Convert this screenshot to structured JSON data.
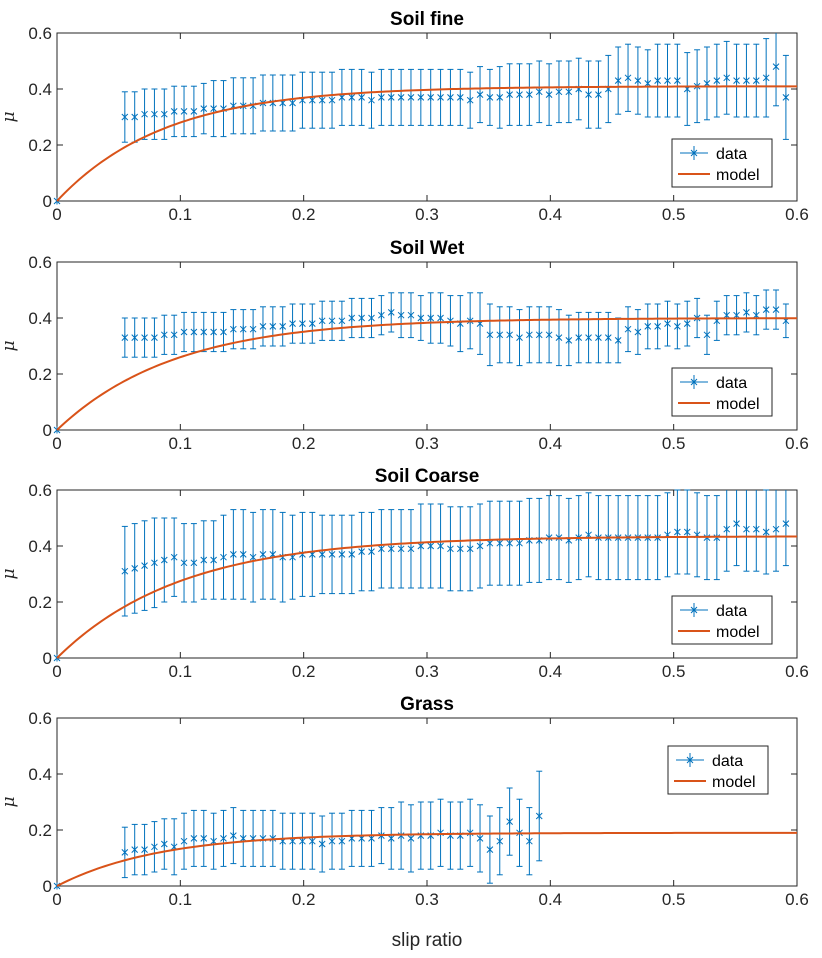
{
  "chart_data": [
    {
      "type": "errorbar+line",
      "title": "Soil fine",
      "xlabel": "",
      "ylabel": "μ",
      "xlim": [
        0,
        0.6
      ],
      "ylim": [
        0,
        0.6
      ],
      "xticks": [
        0,
        0.1,
        0.2,
        0.3,
        0.4,
        0.5,
        0.6
      ],
      "yticks": [
        0,
        0.2,
        0.4,
        0.6
      ],
      "legend": {
        "position": "bottom-right",
        "entries": [
          "data",
          "model"
        ]
      },
      "colors": {
        "data": "#0072BD",
        "model": "#D95319"
      },
      "model": {
        "mu_max": 0.41,
        "k": 11.5
      },
      "series": {
        "data": {
          "x": [
            0,
            0.055,
            0.063,
            0.071,
            0.079,
            0.087,
            0.095,
            0.103,
            0.111,
            0.119,
            0.127,
            0.135,
            0.143,
            0.151,
            0.159,
            0.167,
            0.175,
            0.183,
            0.191,
            0.199,
            0.207,
            0.215,
            0.223,
            0.231,
            0.239,
            0.247,
            0.255,
            0.263,
            0.271,
            0.279,
            0.287,
            0.295,
            0.303,
            0.311,
            0.319,
            0.327,
            0.335,
            0.343,
            0.351,
            0.359,
            0.367,
            0.375,
            0.383,
            0.391,
            0.399,
            0.407,
            0.415,
            0.423,
            0.431,
            0.439,
            0.447,
            0.455,
            0.463,
            0.471,
            0.479,
            0.487,
            0.495,
            0.503,
            0.511,
            0.519,
            0.527,
            0.535,
            0.543,
            0.551,
            0.559,
            0.567,
            0.575,
            0.583,
            0.591
          ],
          "y": [
            0,
            0.3,
            0.3,
            0.31,
            0.31,
            0.31,
            0.32,
            0.32,
            0.32,
            0.33,
            0.33,
            0.33,
            0.34,
            0.34,
            0.34,
            0.35,
            0.35,
            0.35,
            0.35,
            0.36,
            0.36,
            0.36,
            0.36,
            0.37,
            0.37,
            0.37,
            0.36,
            0.37,
            0.37,
            0.37,
            0.37,
            0.37,
            0.37,
            0.37,
            0.37,
            0.37,
            0.36,
            0.38,
            0.37,
            0.37,
            0.38,
            0.38,
            0.38,
            0.39,
            0.38,
            0.39,
            0.39,
            0.4,
            0.38,
            0.38,
            0.4,
            0.43,
            0.44,
            0.43,
            0.42,
            0.43,
            0.43,
            0.43,
            0.4,
            0.41,
            0.42,
            0.43,
            0.44,
            0.43,
            0.43,
            0.43,
            0.44,
            0.48,
            0.37
          ],
          "err": [
            0,
            0.09,
            0.09,
            0.09,
            0.09,
            0.09,
            0.09,
            0.09,
            0.09,
            0.09,
            0.1,
            0.1,
            0.1,
            0.1,
            0.1,
            0.1,
            0.1,
            0.1,
            0.1,
            0.1,
            0.1,
            0.1,
            0.1,
            0.1,
            0.1,
            0.1,
            0.1,
            0.1,
            0.1,
            0.1,
            0.1,
            0.1,
            0.1,
            0.1,
            0.1,
            0.1,
            0.1,
            0.1,
            0.1,
            0.11,
            0.11,
            0.11,
            0.11,
            0.11,
            0.11,
            0.11,
            0.11,
            0.11,
            0.12,
            0.12,
            0.12,
            0.12,
            0.12,
            0.12,
            0.12,
            0.13,
            0.13,
            0.13,
            0.13,
            0.13,
            0.13,
            0.13,
            0.13,
            0.13,
            0.13,
            0.13,
            0.14,
            0.14,
            0.15
          ]
        }
      }
    },
    {
      "type": "errorbar+line",
      "title": "Soil Wet",
      "xlabel": "",
      "ylabel": "μ",
      "xlim": [
        0,
        0.6
      ],
      "ylim": [
        0,
        0.6
      ],
      "xticks": [
        0,
        0.1,
        0.2,
        0.3,
        0.4,
        0.5,
        0.6
      ],
      "yticks": [
        0,
        0.2,
        0.4,
        0.6
      ],
      "legend": {
        "position": "bottom-right",
        "entries": [
          "data",
          "model"
        ]
      },
      "colors": {
        "data": "#0072BD",
        "model": "#D95319"
      },
      "model": {
        "mu_max": 0.4,
        "k": 10.5
      },
      "series": {
        "data": {
          "x": [
            0,
            0.055,
            0.063,
            0.071,
            0.079,
            0.087,
            0.095,
            0.103,
            0.111,
            0.119,
            0.127,
            0.135,
            0.143,
            0.151,
            0.159,
            0.167,
            0.175,
            0.183,
            0.191,
            0.199,
            0.207,
            0.215,
            0.223,
            0.231,
            0.239,
            0.247,
            0.255,
            0.263,
            0.271,
            0.279,
            0.287,
            0.295,
            0.303,
            0.311,
            0.319,
            0.327,
            0.335,
            0.343,
            0.351,
            0.359,
            0.367,
            0.375,
            0.383,
            0.391,
            0.399,
            0.407,
            0.415,
            0.423,
            0.431,
            0.439,
            0.447,
            0.455,
            0.463,
            0.471,
            0.479,
            0.487,
            0.495,
            0.503,
            0.511,
            0.519,
            0.527,
            0.535,
            0.543,
            0.551,
            0.559,
            0.567,
            0.575,
            0.583,
            0.591
          ],
          "y": [
            0,
            0.33,
            0.33,
            0.33,
            0.33,
            0.34,
            0.34,
            0.35,
            0.35,
            0.35,
            0.35,
            0.35,
            0.36,
            0.36,
            0.36,
            0.37,
            0.37,
            0.37,
            0.38,
            0.38,
            0.38,
            0.39,
            0.39,
            0.39,
            0.4,
            0.4,
            0.4,
            0.41,
            0.42,
            0.41,
            0.41,
            0.4,
            0.4,
            0.4,
            0.39,
            0.38,
            0.39,
            0.38,
            0.34,
            0.34,
            0.34,
            0.33,
            0.34,
            0.34,
            0.34,
            0.33,
            0.32,
            0.33,
            0.33,
            0.33,
            0.33,
            0.32,
            0.36,
            0.35,
            0.37,
            0.37,
            0.38,
            0.37,
            0.38,
            0.4,
            0.34,
            0.39,
            0.41,
            0.41,
            0.42,
            0.41,
            0.43,
            0.43,
            0.39
          ],
          "err": [
            0,
            0.07,
            0.07,
            0.07,
            0.07,
            0.07,
            0.07,
            0.07,
            0.07,
            0.07,
            0.07,
            0.07,
            0.07,
            0.07,
            0.07,
            0.07,
            0.07,
            0.07,
            0.07,
            0.07,
            0.07,
            0.07,
            0.07,
            0.07,
            0.07,
            0.07,
            0.07,
            0.07,
            0.07,
            0.08,
            0.08,
            0.08,
            0.09,
            0.09,
            0.09,
            0.1,
            0.1,
            0.11,
            0.11,
            0.1,
            0.1,
            0.1,
            0.1,
            0.1,
            0.1,
            0.1,
            0.09,
            0.09,
            0.09,
            0.09,
            0.09,
            0.08,
            0.08,
            0.08,
            0.08,
            0.08,
            0.08,
            0.08,
            0.08,
            0.07,
            0.07,
            0.07,
            0.07,
            0.07,
            0.07,
            0.07,
            0.07,
            0.07,
            0.06
          ]
        }
      }
    },
    {
      "type": "errorbar+line",
      "title": "Soil Coarse",
      "xlabel": "",
      "ylabel": "μ",
      "xlim": [
        0,
        0.6
      ],
      "ylim": [
        0,
        0.6
      ],
      "xticks": [
        0,
        0.1,
        0.2,
        0.3,
        0.4,
        0.5,
        0.6
      ],
      "yticks": [
        0,
        0.2,
        0.4,
        0.6
      ],
      "legend": {
        "position": "bottom-right",
        "entries": [
          "data",
          "model"
        ]
      },
      "colors": {
        "data": "#0072BD",
        "model": "#D95319"
      },
      "model": {
        "mu_max": 0.435,
        "k": 10.0
      },
      "series": {
        "data": {
          "x": [
            0,
            0.055,
            0.063,
            0.071,
            0.079,
            0.087,
            0.095,
            0.103,
            0.111,
            0.119,
            0.127,
            0.135,
            0.143,
            0.151,
            0.159,
            0.167,
            0.175,
            0.183,
            0.191,
            0.199,
            0.207,
            0.215,
            0.223,
            0.231,
            0.239,
            0.247,
            0.255,
            0.263,
            0.271,
            0.279,
            0.287,
            0.295,
            0.303,
            0.311,
            0.319,
            0.327,
            0.335,
            0.343,
            0.351,
            0.359,
            0.367,
            0.375,
            0.383,
            0.391,
            0.399,
            0.407,
            0.415,
            0.423,
            0.431,
            0.439,
            0.447,
            0.455,
            0.463,
            0.471,
            0.479,
            0.487,
            0.495,
            0.503,
            0.511,
            0.519,
            0.527,
            0.535,
            0.543,
            0.551,
            0.559,
            0.567,
            0.575,
            0.583,
            0.591
          ],
          "y": [
            0,
            0.31,
            0.32,
            0.33,
            0.34,
            0.35,
            0.36,
            0.34,
            0.34,
            0.35,
            0.35,
            0.36,
            0.37,
            0.37,
            0.36,
            0.37,
            0.37,
            0.36,
            0.36,
            0.37,
            0.37,
            0.37,
            0.37,
            0.37,
            0.37,
            0.38,
            0.38,
            0.39,
            0.39,
            0.39,
            0.39,
            0.4,
            0.4,
            0.4,
            0.39,
            0.39,
            0.39,
            0.4,
            0.41,
            0.41,
            0.41,
            0.41,
            0.42,
            0.42,
            0.43,
            0.43,
            0.42,
            0.43,
            0.44,
            0.43,
            0.43,
            0.43,
            0.43,
            0.43,
            0.43,
            0.43,
            0.44,
            0.45,
            0.45,
            0.44,
            0.43,
            0.43,
            0.46,
            0.48,
            0.46,
            0.46,
            0.45,
            0.46,
            0.48
          ],
          "err": [
            0,
            0.16,
            0.16,
            0.16,
            0.16,
            0.15,
            0.14,
            0.14,
            0.14,
            0.14,
            0.14,
            0.15,
            0.16,
            0.16,
            0.16,
            0.16,
            0.16,
            0.16,
            0.15,
            0.15,
            0.15,
            0.14,
            0.14,
            0.14,
            0.14,
            0.14,
            0.14,
            0.14,
            0.14,
            0.14,
            0.14,
            0.15,
            0.15,
            0.15,
            0.15,
            0.15,
            0.15,
            0.15,
            0.15,
            0.15,
            0.15,
            0.15,
            0.15,
            0.15,
            0.15,
            0.15,
            0.15,
            0.15,
            0.15,
            0.15,
            0.15,
            0.15,
            0.15,
            0.15,
            0.15,
            0.15,
            0.15,
            0.15,
            0.15,
            0.15,
            0.15,
            0.15,
            0.15,
            0.15,
            0.15,
            0.15,
            0.15,
            0.15,
            0.15
          ]
        }
      }
    },
    {
      "type": "errorbar+line",
      "title": "Grass",
      "xlabel": "slip ratio",
      "ylabel": "μ",
      "xlim": [
        0,
        0.6
      ],
      "ylim": [
        0,
        0.6
      ],
      "xticks": [
        0,
        0.1,
        0.2,
        0.3,
        0.4,
        0.5,
        0.6
      ],
      "yticks": [
        0,
        0.2,
        0.4,
        0.6
      ],
      "legend": {
        "position": "top-right",
        "entries": [
          "data",
          "model"
        ]
      },
      "colors": {
        "data": "#0072BD",
        "model": "#D95319"
      },
      "model": {
        "mu_max": 0.19,
        "k": 12.0
      },
      "series": {
        "data": {
          "x": [
            0,
            0.055,
            0.063,
            0.071,
            0.079,
            0.087,
            0.095,
            0.103,
            0.111,
            0.119,
            0.127,
            0.135,
            0.143,
            0.151,
            0.159,
            0.167,
            0.175,
            0.183,
            0.191,
            0.199,
            0.207,
            0.215,
            0.223,
            0.231,
            0.239,
            0.247,
            0.255,
            0.263,
            0.271,
            0.279,
            0.287,
            0.295,
            0.303,
            0.311,
            0.319,
            0.327,
            0.335,
            0.343,
            0.351,
            0.359,
            0.367,
            0.375,
            0.383,
            0.391
          ],
          "y": [
            0,
            0.12,
            0.13,
            0.13,
            0.14,
            0.15,
            0.14,
            0.16,
            0.17,
            0.17,
            0.16,
            0.17,
            0.18,
            0.17,
            0.17,
            0.17,
            0.17,
            0.16,
            0.16,
            0.16,
            0.16,
            0.15,
            0.16,
            0.16,
            0.17,
            0.17,
            0.17,
            0.18,
            0.17,
            0.18,
            0.17,
            0.18,
            0.18,
            0.19,
            0.18,
            0.18,
            0.19,
            0.17,
            0.13,
            0.16,
            0.23,
            0.19,
            0.16,
            0.25
          ],
          "err": [
            0,
            0.09,
            0.09,
            0.09,
            0.09,
            0.09,
            0.1,
            0.1,
            0.1,
            0.1,
            0.1,
            0.1,
            0.1,
            0.1,
            0.1,
            0.1,
            0.1,
            0.1,
            0.1,
            0.1,
            0.1,
            0.1,
            0.1,
            0.1,
            0.1,
            0.1,
            0.1,
            0.1,
            0.11,
            0.12,
            0.12,
            0.12,
            0.12,
            0.12,
            0.12,
            0.12,
            0.12,
            0.12,
            0.12,
            0.12,
            0.12,
            0.12,
            0.12,
            0.16
          ]
        }
      }
    }
  ]
}
